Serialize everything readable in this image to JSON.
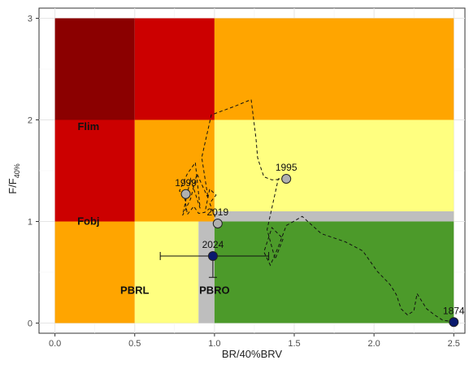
{
  "chart_data": {
    "type": "scatter",
    "xlabel": "BR/40%BRV",
    "ylabel_main": "F/F",
    "ylabel_sub": "40%",
    "xlim": [
      -0.1,
      2.57
    ],
    "ylim": [
      -0.1,
      3.1
    ],
    "x_ticks": [
      0.0,
      0.5,
      1.0,
      1.5,
      2.0,
      2.5
    ],
    "x_tick_labels": [
      "0.0",
      "0.5",
      "1.0",
      "1.5",
      "2.0",
      "2.5"
    ],
    "y_ticks": [
      0,
      1,
      2,
      3
    ],
    "y_tick_labels": [
      "0",
      "1",
      "2",
      "3"
    ],
    "grid": true,
    "colors": {
      "dark_red": "#8b0000",
      "red": "#cc0000",
      "orange": "#ffa500",
      "yellow": "#ffff80",
      "green": "#4c9a2a",
      "grey": "#bebebe",
      "point_grey": "#b0b0b0",
      "point_navy": "#0a1a6e"
    },
    "zones": [
      {
        "x": [
          0.0,
          0.5
        ],
        "y": [
          2.0,
          3.0
        ],
        "color": "dark_red"
      },
      {
        "x": [
          0.5,
          1.0
        ],
        "y": [
          2.0,
          3.0
        ],
        "color": "red"
      },
      {
        "x": [
          1.0,
          2.5
        ],
        "y": [
          2.0,
          3.0
        ],
        "color": "orange"
      },
      {
        "x": [
          0.0,
          0.5
        ],
        "y": [
          1.0,
          2.0
        ],
        "color": "red"
      },
      {
        "x": [
          0.5,
          1.0
        ],
        "y": [
          1.0,
          2.0
        ],
        "color": "orange"
      },
      {
        "x": [
          1.0,
          2.5
        ],
        "y": [
          1.0,
          2.0
        ],
        "color": "yellow"
      },
      {
        "x": [
          0.0,
          0.5
        ],
        "y": [
          0.0,
          1.0
        ],
        "color": "orange"
      },
      {
        "x": [
          0.5,
          0.9
        ],
        "y": [
          0.0,
          1.0
        ],
        "color": "yellow"
      },
      {
        "x": [
          0.9,
          1.0
        ],
        "y": [
          0.0,
          1.0
        ],
        "color": "grey"
      },
      {
        "x": [
          1.0,
          2.5
        ],
        "y": [
          1.0,
          1.1
        ],
        "color": "grey"
      },
      {
        "x": [
          1.0,
          2.5
        ],
        "y": [
          0.0,
          1.0
        ],
        "color": "green"
      }
    ],
    "zone_labels": [
      {
        "text": "Flim",
        "x": 0.21,
        "y": 1.9
      },
      {
        "text": "Fobj",
        "x": 0.21,
        "y": 0.97
      },
      {
        "text": "PBRL",
        "x": 0.5,
        "y": 0.29
      },
      {
        "text": "PBRO",
        "x": 1.0,
        "y": 0.29
      }
    ],
    "trajectory": [
      [
        2.5,
        0.01
      ],
      [
        2.43,
        0.03
      ],
      [
        2.38,
        0.08
      ],
      [
        2.33,
        0.14
      ],
      [
        2.29,
        0.24
      ],
      [
        2.27,
        0.29
      ],
      [
        2.25,
        0.12
      ],
      [
        2.21,
        0.08
      ],
      [
        2.17,
        0.14
      ],
      [
        2.14,
        0.28
      ],
      [
        2.1,
        0.38
      ],
      [
        2.02,
        0.51
      ],
      [
        1.93,
        0.71
      ],
      [
        1.82,
        0.8
      ],
      [
        1.67,
        0.88
      ],
      [
        1.55,
        1.05
      ],
      [
        1.45,
        0.96
      ],
      [
        1.4,
        0.75
      ],
      [
        1.35,
        0.57
      ],
      [
        1.31,
        0.7
      ],
      [
        1.36,
        0.94
      ],
      [
        1.43,
        0.83
      ],
      [
        1.38,
        0.63
      ],
      [
        1.33,
        0.92
      ],
      [
        1.4,
        1.42
      ],
      [
        1.45,
        1.42
      ],
      [
        1.36,
        1.41
      ],
      [
        1.31,
        1.44
      ],
      [
        1.29,
        1.53
      ],
      [
        1.27,
        1.63
      ],
      [
        1.26,
        1.82
      ],
      [
        1.23,
        2.2
      ],
      [
        1.12,
        2.13
      ],
      [
        0.98,
        2.05
      ],
      [
        0.92,
        1.63
      ],
      [
        0.96,
        1.23
      ],
      [
        0.89,
        1.47
      ],
      [
        0.85,
        1.22
      ],
      [
        0.8,
        1.06
      ],
      [
        0.85,
        1.42
      ],
      [
        0.91,
        1.13
      ],
      [
        0.88,
        1.58
      ],
      [
        0.83,
        1.47
      ],
      [
        0.78,
        1.3
      ],
      [
        0.81,
        1.27
      ],
      [
        0.83,
        1.07
      ],
      [
        0.87,
        1.15
      ],
      [
        0.9,
        1.08
      ],
      [
        0.94,
        1.09
      ],
      [
        0.97,
        1.32
      ],
      [
        1.01,
        1.26
      ],
      [
        0.97,
        1.18
      ],
      [
        1.02,
        0.98
      ]
    ],
    "points": [
      {
        "label": "1995",
        "x": 1.45,
        "y": 1.42,
        "color": "point_grey",
        "label_dx": 0,
        "label_dy": -1
      },
      {
        "label": "1999",
        "x": 0.82,
        "y": 1.27,
        "color": "point_grey",
        "label_dx": 0,
        "label_dy": -1
      },
      {
        "label": "2019",
        "x": 1.02,
        "y": 0.98,
        "color": "point_grey",
        "label_dx": 0,
        "label_dy": -1
      },
      {
        "label": "2024",
        "x": 0.99,
        "y": 0.66,
        "color": "point_navy",
        "label_dx": 0,
        "label_dy": -1
      },
      {
        "label": "1874",
        "x": 2.5,
        "y": 0.01,
        "color": "point_navy",
        "label_dx": 0,
        "label_dy": -1
      }
    ],
    "error_bars": {
      "x": 0.99,
      "y": 0.66,
      "x_range": [
        0.66,
        1.34
      ],
      "y_range": [
        0.45,
        0.66
      ]
    }
  }
}
